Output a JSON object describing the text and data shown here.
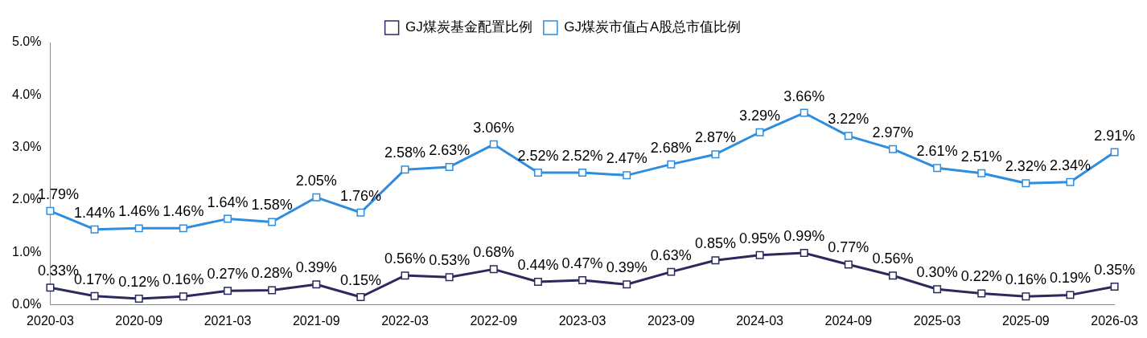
{
  "chart_data": {
    "type": "line",
    "categories": [
      "2020-03",
      null,
      "2020-09",
      null,
      "2021-03",
      null,
      "2021-09",
      null,
      "2022-03",
      null,
      "2022-09",
      null,
      "2023-03",
      null,
      "2023-09",
      null,
      "2024-03",
      null,
      "2024-09",
      null,
      "2025-03",
      null,
      "2025-09",
      null,
      "2026-03"
    ],
    "series": [
      {
        "name": "GJ煤炭基金配置比例",
        "color": "#2b2a5c",
        "values": [
          0.33,
          0.17,
          0.12,
          0.16,
          0.27,
          0.28,
          0.39,
          0.15,
          0.56,
          0.53,
          0.68,
          0.44,
          0.47,
          0.39,
          0.63,
          0.85,
          0.95,
          0.99,
          0.77,
          0.56,
          0.3,
          0.22,
          0.16,
          0.19,
          0.35
        ],
        "value_labels": [
          "0.33%",
          "0.17%",
          "0.12%",
          "0.16%",
          "0.27%",
          "0.28%",
          "0.39%",
          "0.15%",
          "0.56%",
          "0.53%",
          "0.68%",
          "0.44%",
          "0.47%",
          "0.39%",
          "0.63%",
          "0.85%",
          "0.95%",
          "0.99%",
          "0.77%",
          "0.56%",
          "0.30%",
          "0.22%",
          "0.16%",
          "0.19%",
          "0.35%"
        ]
      },
      {
        "name": "GJ煤炭市值占A股总市值比例",
        "color": "#2e8ddf",
        "values": [
          1.79,
          1.44,
          1.46,
          1.46,
          1.64,
          1.58,
          2.05,
          1.76,
          2.58,
          2.63,
          3.06,
          2.52,
          2.52,
          2.47,
          2.68,
          2.87,
          3.29,
          3.66,
          3.22,
          2.97,
          2.61,
          2.51,
          2.32,
          2.34,
          2.91
        ],
        "value_labels": [
          "1.79%",
          "1.44%",
          "1.46%",
          "1.46%",
          "1.64%",
          "1.58%",
          "2.05%",
          "1.76%",
          "2.58%",
          "2.63%",
          "3.06%",
          "2.52%",
          "2.52%",
          "2.47%",
          "2.68%",
          "2.87%",
          "3.29%",
          "3.66%",
          "3.22%",
          "2.97%",
          "2.61%",
          "2.51%",
          "2.32%",
          "2.34%",
          "2.91%"
        ]
      }
    ],
    "ylim": [
      0,
      5
    ],
    "yticks": [
      {
        "value": 0,
        "label": "0.0%"
      },
      {
        "value": 1,
        "label": "1.0%"
      },
      {
        "value": 2,
        "label": "2.0%"
      },
      {
        "value": 3,
        "label": "3.0%"
      },
      {
        "value": 4,
        "label": "4.0%"
      },
      {
        "value": 5,
        "label": "5.0%"
      }
    ],
    "grid": false,
    "legend": "top",
    "marker": "square",
    "line_style": "solid"
  }
}
